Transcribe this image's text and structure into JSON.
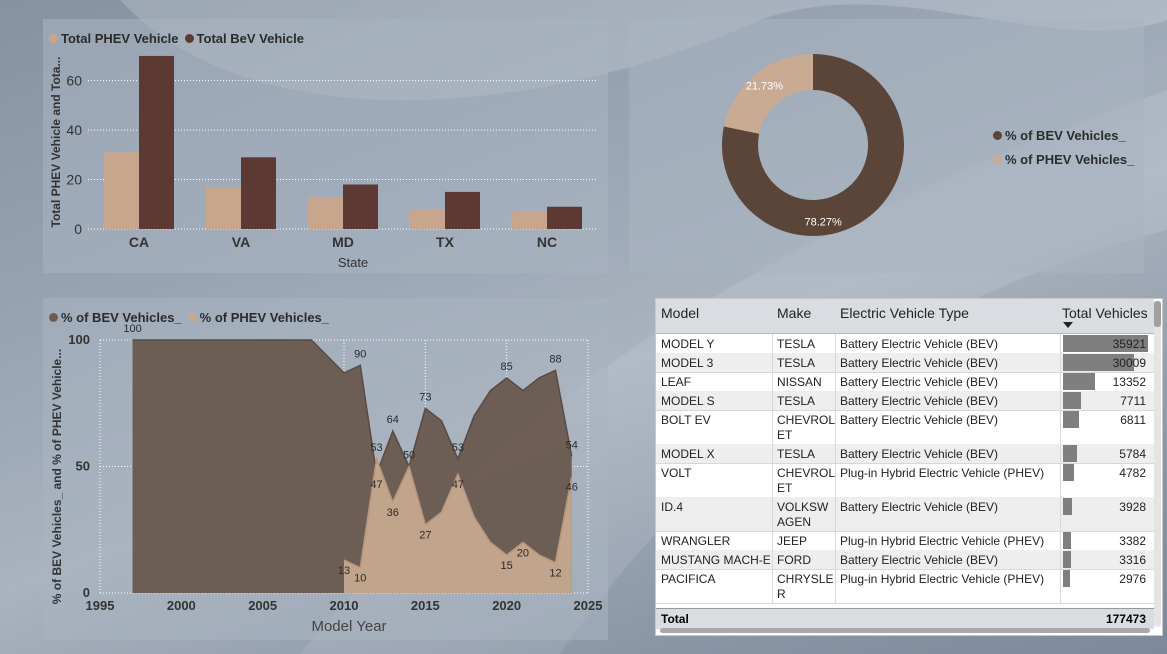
{
  "colors": {
    "phev": "#c8a68e",
    "bev": "#5c3a33",
    "donut_bev": "#5a4538",
    "donut_phev": "#c9ab94",
    "area_bev": "#6b5b52",
    "area_phev": "#c6a88f"
  },
  "bar_legend": [
    "Total PHEV Vehicle",
    "Total BeV Vehicle"
  ],
  "donut_legend": [
    "% of BEV Vehicles_",
    "% of PHEV Vehicles_"
  ],
  "area_legend": [
    "% of BEV Vehicles_",
    "% of PHEV Vehicles_"
  ],
  "chart_data": [
    {
      "type": "bar",
      "categories": [
        "CA",
        "VA",
        "MD",
        "TX",
        "NC"
      ],
      "series": [
        {
          "name": "Total PHEV Vehicle",
          "values": [
            31,
            17,
            13,
            8,
            7
          ]
        },
        {
          "name": "Total BeV Vehicle",
          "values": [
            70,
            29,
            18,
            15,
            9
          ]
        }
      ],
      "xlabel": "State",
      "ylabel": "Total PHEV Vehicle and Tota...",
      "yticks": [
        0,
        20,
        40,
        60
      ],
      "ylim": [
        0,
        72
      ],
      "grid": true,
      "legend": "top-left"
    },
    {
      "type": "pie",
      "donut": true,
      "labels": [
        "% of BEV Vehicles_",
        "% of PHEV Vehicles_"
      ],
      "values": [
        78.27,
        21.73
      ],
      "value_labels": [
        "78.27%",
        "21.73%"
      ],
      "legend": "right"
    },
    {
      "type": "area",
      "xlabel": "Model Year",
      "ylabel": "% of BEV Vehicles_ and % of PHEV Vehicle...",
      "xticks": [
        1995,
        2000,
        2005,
        2010,
        2015,
        2020,
        2025
      ],
      "yticks": [
        0,
        50,
        100
      ],
      "xlim": [
        1995,
        2025
      ],
      "ylim": [
        0,
        100
      ],
      "series": [
        {
          "name": "% of BEV Vehicles_",
          "x": [
            1997,
            2008,
            2010,
            2011,
            2012,
            2013,
            2014,
            2015,
            2016,
            2017,
            2018,
            2019,
            2020,
            2021,
            2022,
            2023,
            2024
          ],
          "values": [
            100,
            100,
            87,
            90,
            47,
            64,
            50,
            73,
            68,
            53,
            70,
            80,
            85,
            80,
            85,
            88,
            54
          ]
        },
        {
          "name": "% of PHEV Vehicles_",
          "x": [
            2010,
            2011,
            2012,
            2013,
            2014,
            2015,
            2016,
            2017,
            2018,
            2019,
            2020,
            2021,
            2022,
            2023,
            2024
          ],
          "values": [
            13,
            10,
            53,
            36,
            50,
            27,
            32,
            47,
            30,
            20,
            15,
            20,
            15,
            12,
            46
          ]
        }
      ],
      "data_labels": [
        {
          "x": 1997,
          "y": 100,
          "text": "100"
        },
        {
          "x": 2011,
          "y": 90,
          "text": "90"
        },
        {
          "x": 2010,
          "y": 13,
          "text": "13"
        },
        {
          "x": 2011,
          "y": 10,
          "text": "10"
        },
        {
          "x": 2012,
          "y": 53,
          "text": "53"
        },
        {
          "x": 2012,
          "y": 47,
          "text": "47"
        },
        {
          "x": 2013,
          "y": 64,
          "text": "64"
        },
        {
          "x": 2013,
          "y": 36,
          "text": "36"
        },
        {
          "x": 2014,
          "y": 50,
          "text": "50"
        },
        {
          "x": 2015,
          "y": 73,
          "text": "73"
        },
        {
          "x": 2015,
          "y": 27,
          "text": "27"
        },
        {
          "x": 2017,
          "y": 53,
          "text": "53"
        },
        {
          "x": 2017,
          "y": 47,
          "text": "47"
        },
        {
          "x": 2020,
          "y": 85,
          "text": "85"
        },
        {
          "x": 2020,
          "y": 15,
          "text": "15"
        },
        {
          "x": 2021,
          "y": 20,
          "text": "20"
        },
        {
          "x": 2023,
          "y": 88,
          "text": "88"
        },
        {
          "x": 2023,
          "y": 12,
          "text": "12"
        },
        {
          "x": 2024,
          "y": 54,
          "text": "54"
        },
        {
          "x": 2024,
          "y": 46,
          "text": "46"
        }
      ],
      "legend": "top-left"
    }
  ],
  "table": {
    "headers": [
      "Model",
      "Make",
      "Electric Vehicle Type",
      "Total Vehicles"
    ],
    "max_value": 35921,
    "rows": [
      [
        "MODEL Y",
        "TESLA",
        "Battery Electric Vehicle (BEV)",
        35921
      ],
      [
        "MODEL 3",
        "TESLA",
        "Battery Electric Vehicle (BEV)",
        30009
      ],
      [
        "LEAF",
        "NISSAN",
        "Battery Electric Vehicle (BEV)",
        13352
      ],
      [
        "MODEL S",
        "TESLA",
        "Battery Electric Vehicle (BEV)",
        7711
      ],
      [
        "BOLT EV",
        "CHEVROL\nET",
        "Battery Electric Vehicle (BEV)",
        6811
      ],
      [
        "MODEL X",
        "TESLA",
        "Battery Electric Vehicle (BEV)",
        5784
      ],
      [
        "VOLT",
        "CHEVROL\nET",
        "Plug-in Hybrid Electric Vehicle (PHEV)",
        4782
      ],
      [
        "ID.4",
        "VOLKSW\nAGEN",
        "Battery Electric Vehicle (BEV)",
        3928
      ],
      [
        "WRANGLER",
        "JEEP",
        "Plug-in Hybrid Electric Vehicle (PHEV)",
        3382
      ],
      [
        "MUSTANG MACH-E",
        "FORD",
        "Battery Electric Vehicle (BEV)",
        3316
      ],
      [
        "PACIFICA",
        "CHRYSLE\nR",
        "Plug-in Hybrid Electric Vehicle (PHEV)",
        2976
      ]
    ],
    "total_label": "Total",
    "total_value": "177473"
  }
}
